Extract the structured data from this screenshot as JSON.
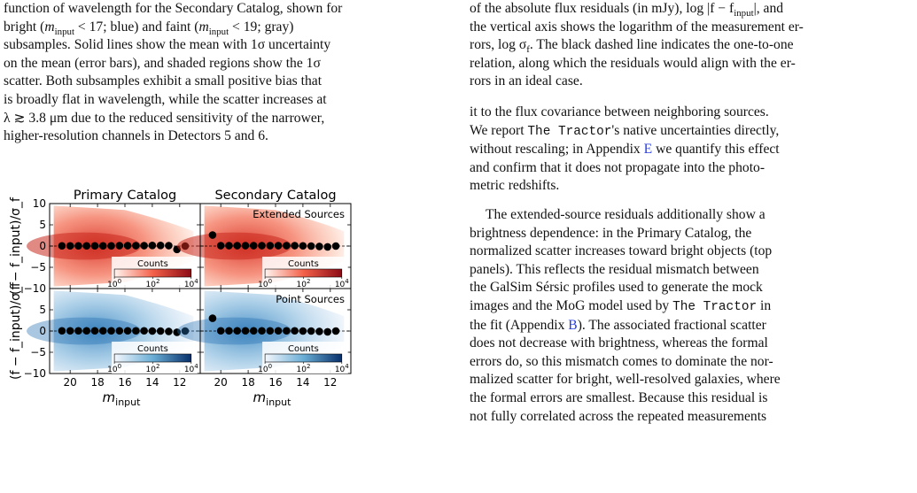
{
  "left_caption": {
    "line1": "function of wavelength for the Secondary Catalog, shown for",
    "line2a": "bright (",
    "line2_mvar": "m",
    "line2_msub": "input",
    "line2b": " < 17; blue) and faint (",
    "line2c": " < 19; gray)",
    "line3": "subsamples. Solid lines show the mean with 1σ uncertainty",
    "line4": "on the mean (error bars), and shaded regions show the 1σ",
    "line5": "scatter. Both subsamples exhibit a small positive bias that",
    "line6": "is broadly flat in wavelength, while the scatter increases at",
    "line7": "λ ≳ 3.8 μm due to the reduced sensitivity of the narrower,",
    "line8": "higher-resolution channels in Detectors 5 and 6."
  },
  "right_caption": {
    "line1": "of the absolute flux residuals (in mJy), log |f − f",
    "line1_sub": "input",
    "line1_end": "|, and",
    "line2": "the vertical axis shows the logarithm of the measurement er-",
    "line3": "rors, log σ",
    "line3_sub": "f",
    "line3_end": ". The black dashed line indicates the one-to-one",
    "line4": "relation, along which the residuals would align with the er-",
    "line5": "rors in an ideal case."
  },
  "body": {
    "p1_a": "it to the flux covariance between neighboring sources.",
    "p1_b": "We report ",
    "tractor": "The Tractor",
    "p1_c": "'s native uncertainties directly,",
    "p1_d": "without rescaling; in Appendix ",
    "appendix_e": "E",
    "p1_e": " we quantify this effect",
    "p1_f": "and confirm that it does not propagate into the photo-",
    "p1_g": "metric redshifts.",
    "p2_a": "The extended-source residuals additionally show a",
    "p2_b": "brightness dependence: in the Primary Catalog, the",
    "p2_c": "normalized scatter increases toward bright objects (top",
    "p2_d": "panels). This reflects the residual mismatch between",
    "p2_e": "the GalSim Sérsic profiles used to generate the mock",
    "p2_f": "images and the MoG model used by ",
    "p2_g": " in",
    "p2_h": "the fit (Appendix ",
    "appendix_b": "B",
    "p2_i": "). The associated fractional scatter",
    "p2_j": "does not decrease with brightness, whereas the formal",
    "p2_k": "errors do, so this mismatch comes to dominate the nor-",
    "p2_l": "malized scatter for bright, well-resolved galaxies, where",
    "p2_m": "the formal errors are smallest. Because this residual is",
    "p2_n": "not fully correlated across the repeated measurements"
  },
  "colors": {
    "red": "#c8281e",
    "blue": "#1f5fa8",
    "link": "#2a3ee0"
  },
  "chart_data": {
    "type": "scatter",
    "panels": [
      {
        "title": "Primary Catalog",
        "row": "Extended Sources",
        "cmap": "Reds"
      },
      {
        "title": "Secondary Catalog",
        "row": "Extended Sources",
        "cmap": "Reds",
        "label": "Extended Sources"
      },
      {
        "title": "",
        "row": "Point Sources",
        "cmap": "Blues"
      },
      {
        "title": "",
        "row": "Point Sources",
        "cmap": "Blues",
        "label": "Point Sources"
      }
    ],
    "xlabel_m": "m",
    "xlabel_sub": "input",
    "ylabel": "(f − f_input)/σ_f",
    "xlim": [
      21.5,
      10.5
    ],
    "ylim": [
      -10,
      10
    ],
    "xticks": [
      "20",
      "18",
      "16",
      "14",
      "12"
    ],
    "xtick_values": [
      20,
      18,
      16,
      14,
      12
    ],
    "yticks": [
      "10",
      "5",
      "0",
      "−5",
      "−10"
    ],
    "ytick_values": [
      10,
      5,
      0,
      -5,
      -10
    ],
    "colorbar_label": "Counts",
    "colorbar_ticks": [
      "10",
      "10",
      "10"
    ],
    "colorbar_exps": [
      "0",
      "2",
      "4"
    ],
    "mean_x": [
      20.6,
      20.0,
      19.4,
      18.8,
      18.2,
      17.6,
      17.0,
      16.4,
      15.8,
      15.2,
      14.6,
      14.0,
      13.4,
      12.8,
      12.2,
      11.6
    ],
    "mean_y": [
      [
        0.05,
        0.05,
        0.05,
        0.05,
        0.05,
        0.05,
        0.05,
        0.1,
        0.1,
        0.1,
        0.1,
        0.15,
        0.15,
        0.1,
        -0.8,
        0.0
      ],
      [
        2.6,
        0.1,
        0.1,
        0.1,
        0.1,
        0.1,
        0.1,
        0.1,
        0.1,
        0.1,
        0.1,
        0.05,
        0.0,
        -0.1,
        -0.2,
        0.0
      ],
      [
        0.05,
        0.05,
        0.05,
        0.05,
        0.05,
        0.05,
        0.05,
        0.05,
        0.05,
        0.05,
        0.05,
        0.0,
        0.0,
        -0.1,
        -0.3,
        0.0
      ],
      [
        3.0,
        0.05,
        0.05,
        0.05,
        0.05,
        0.05,
        0.05,
        0.05,
        0.05,
        0.05,
        0.05,
        0.0,
        0.0,
        -0.1,
        -0.2,
        0.0
      ]
    ]
  }
}
